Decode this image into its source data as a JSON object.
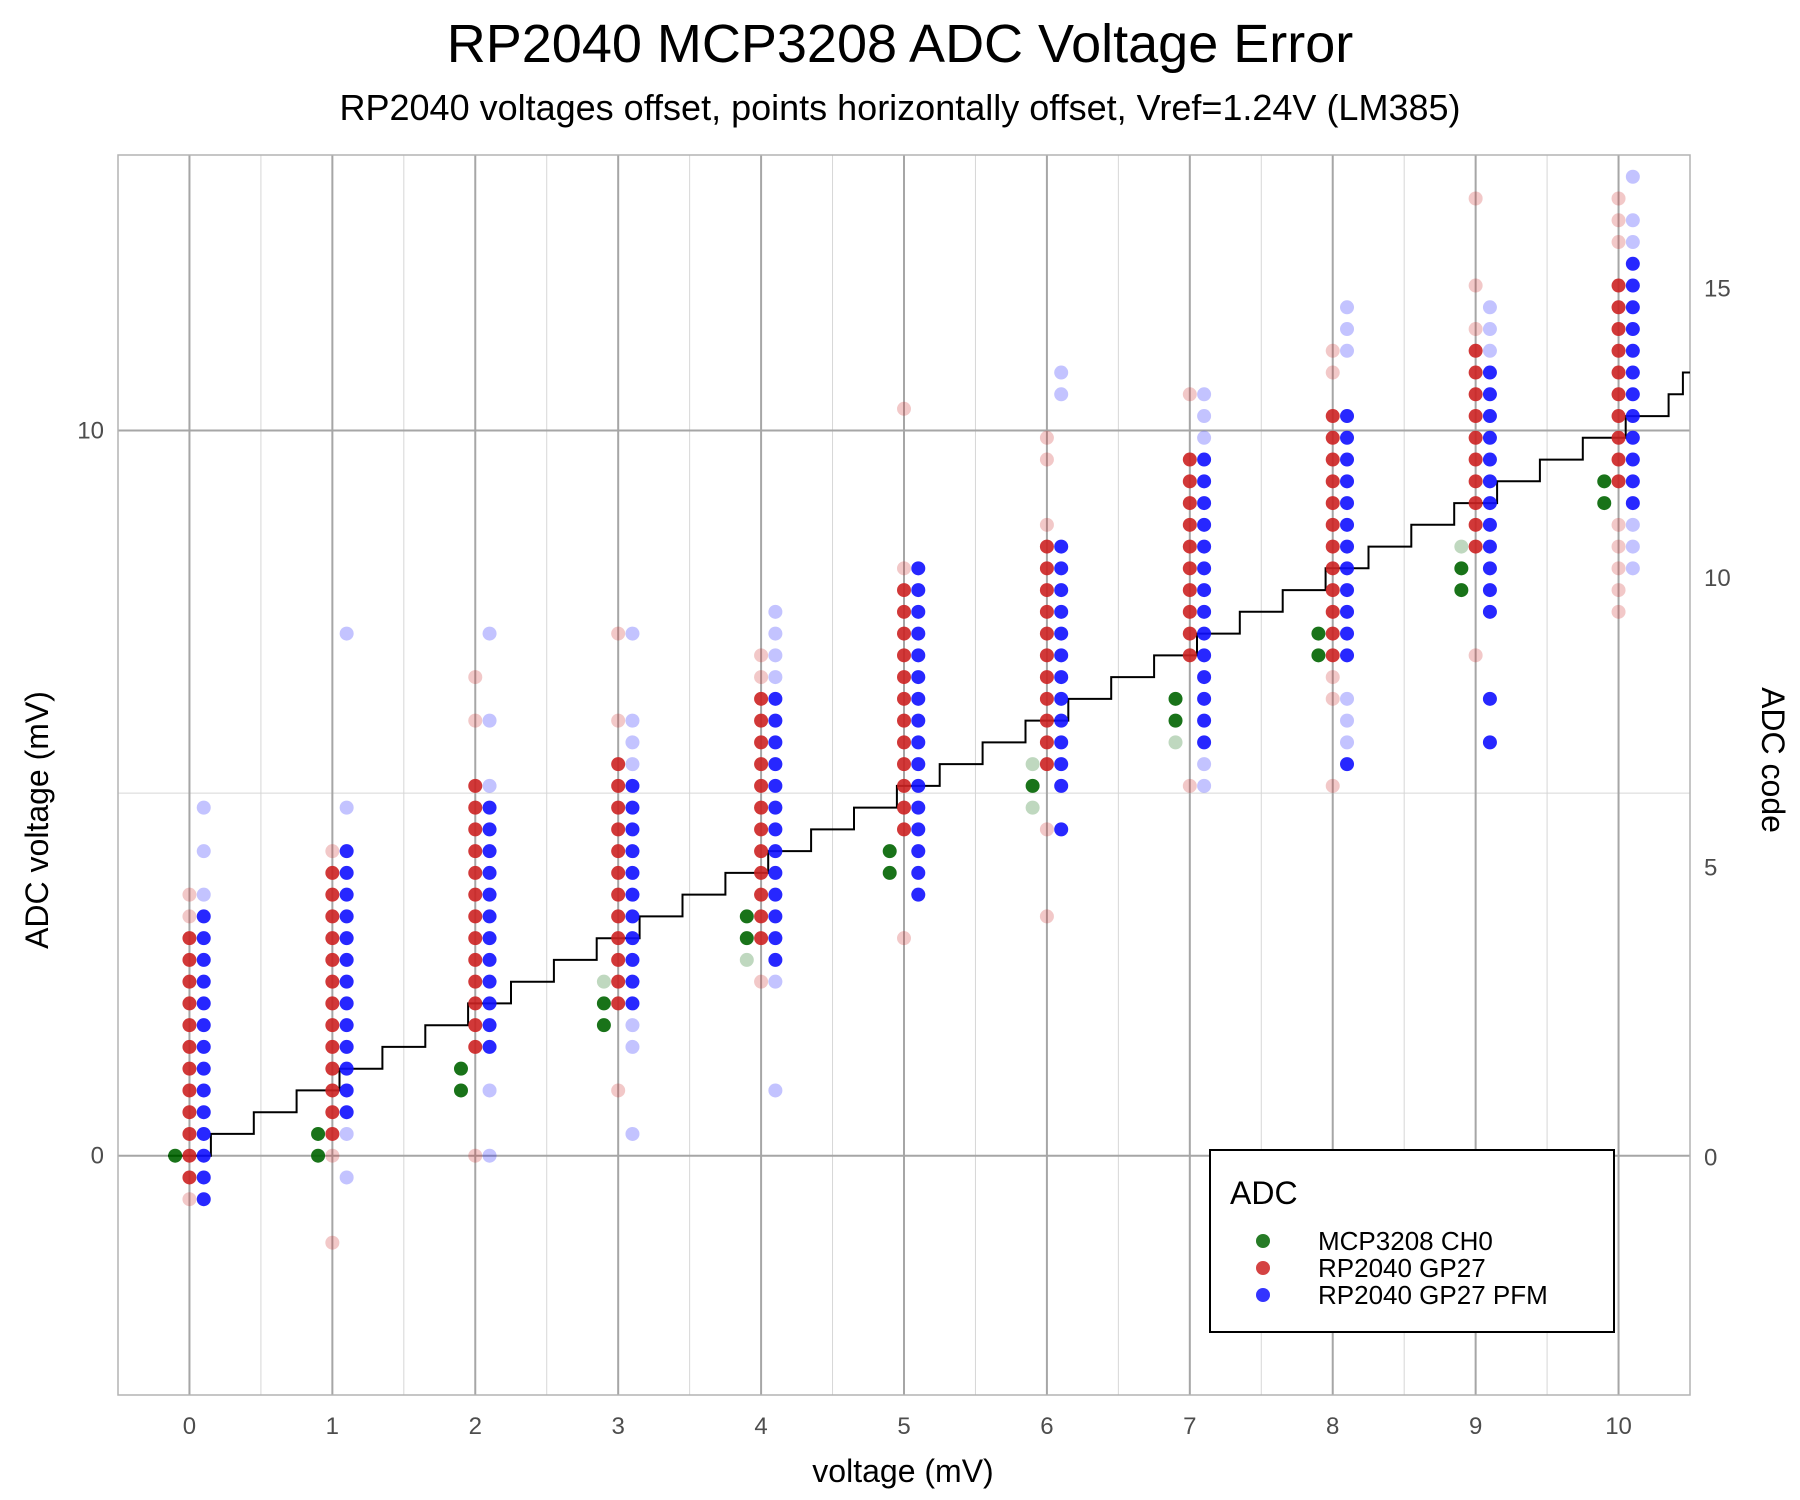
{
  "chart_data": {
    "type": "scatter",
    "title": "RP2040 MCP3208 ADC Voltage Error",
    "subtitle": "RP2040 voltages offset, points horizontally offset, Vref=1.24V (LM385)",
    "xlabel": "voltage (mV)",
    "ylabel": "ADC voltage (mV)",
    "y2label": "ADC code",
    "xlim": [
      -0.5,
      10.5
    ],
    "ylim": [
      -3.3,
      13.8
    ],
    "y2lim": [
      -4.1,
      17.3
    ],
    "x_ticks": [
      "0",
      "1",
      "2",
      "3",
      "4",
      "5",
      "6",
      "7",
      "8",
      "9",
      "10"
    ],
    "y_ticks": [
      "0",
      "10"
    ],
    "y2_ticks": [
      "0",
      "5",
      "10",
      "15"
    ],
    "grid": true,
    "legend": {
      "title": "ADC",
      "position": "bottom-right",
      "entries": [
        "MCP3208 CH0",
        "RP2040 GP27",
        "RP2040 GP27 PFM"
      ]
    },
    "colors": {
      "MCP3208 CH0": "#006400",
      "RP2040 GP27": "#cc2222",
      "RP2040 GP27 PFM": "#1010ff"
    },
    "step_line": {
      "name": "MCP3208 ideal code",
      "x": [
        -0.15,
        0.15,
        0.45,
        0.75,
        1.05,
        1.35,
        1.65,
        1.95,
        2.25,
        2.55,
        2.85,
        3.15,
        3.45,
        3.75,
        4.05,
        4.35,
        4.65,
        4.95,
        5.25,
        5.55,
        5.85,
        6.15,
        6.45,
        6.75,
        7.05,
        7.35,
        7.65,
        7.95,
        8.25,
        8.55,
        8.85,
        9.15,
        9.45,
        9.75,
        10.05,
        10.35,
        10.45
      ],
      "y": [
        0,
        0.3,
        0.6,
        0.9,
        1.2,
        1.5,
        1.8,
        2.1,
        2.4,
        2.7,
        3.0,
        3.3,
        3.6,
        3.9,
        4.2,
        4.5,
        4.8,
        5.1,
        5.4,
        5.7,
        6.0,
        6.3,
        6.6,
        6.9,
        7.2,
        7.5,
        7.8,
        8.1,
        8.4,
        8.7,
        9.0,
        9.3,
        9.6,
        9.9,
        10.2,
        10.5,
        10.8
      ]
    },
    "series": [
      {
        "name": "MCP3208 CH0",
        "x_offset": -0.1,
        "groups": [
          {
            "x": 0,
            "strong": [
              0.0
            ],
            "faint": []
          },
          {
            "x": 1,
            "strong": [
              0.0,
              0.3
            ],
            "faint": []
          },
          {
            "x": 2,
            "strong": [
              0.9,
              1.2
            ],
            "faint": []
          },
          {
            "x": 3,
            "strong": [
              1.8,
              2.1
            ],
            "faint": [
              2.4
            ]
          },
          {
            "x": 4,
            "strong": [
              3.0,
              3.3
            ],
            "faint": [
              2.7
            ]
          },
          {
            "x": 5,
            "strong": [
              3.9,
              4.2
            ],
            "faint": []
          },
          {
            "x": 6,
            "strong": [
              5.1
            ],
            "faint": [
              4.8,
              5.4
            ]
          },
          {
            "x": 7,
            "strong": [
              6.0,
              6.3
            ],
            "faint": [
              5.7
            ]
          },
          {
            "x": 8,
            "strong": [
              6.9,
              7.2
            ],
            "faint": []
          },
          {
            "x": 9,
            "strong": [
              7.8,
              8.1
            ],
            "faint": [
              8.4
            ]
          },
          {
            "x": 10,
            "strong": [
              9.0,
              9.3
            ],
            "faint": []
          }
        ]
      },
      {
        "name": "RP2040 GP27",
        "x_offset": 0.0,
        "groups": [
          {
            "x": 0,
            "strong": [
              -0.3,
              0.0,
              0.3,
              0.6,
              0.9,
              1.2,
              1.5,
              1.8,
              2.1,
              2.4,
              2.7,
              3.0
            ],
            "faint": [
              -0.6,
              3.3,
              3.6
            ]
          },
          {
            "x": 1,
            "strong": [
              0.3,
              0.6,
              0.9,
              1.2,
              1.5,
              1.8,
              2.1,
              2.4,
              2.7,
              3.0,
              3.3,
              3.6,
              3.9
            ],
            "faint": [
              -1.2,
              0.0,
              4.2
            ]
          },
          {
            "x": 2,
            "strong": [
              1.5,
              1.8,
              2.1,
              2.4,
              2.7,
              3.0,
              3.3,
              3.6,
              3.9,
              4.2,
              4.5,
              4.8,
              5.1
            ],
            "faint": [
              0.0,
              6.0,
              6.6
            ]
          },
          {
            "x": 3,
            "strong": [
              2.1,
              2.4,
              2.7,
              3.0,
              3.3,
              3.6,
              3.9,
              4.2,
              4.5,
              4.8,
              5.1,
              5.4
            ],
            "faint": [
              0.9,
              6.0,
              7.2
            ]
          },
          {
            "x": 4,
            "strong": [
              3.0,
              3.3,
              3.6,
              3.9,
              4.2,
              4.5,
              4.8,
              5.1,
              5.4,
              5.7,
              6.0,
              6.3
            ],
            "faint": [
              2.4,
              6.6,
              6.9
            ]
          },
          {
            "x": 5,
            "strong": [
              4.5,
              4.8,
              5.1,
              5.4,
              5.7,
              6.0,
              6.3,
              6.6,
              6.9,
              7.2,
              7.5,
              7.8
            ],
            "faint": [
              3.0,
              8.1,
              10.3
            ]
          },
          {
            "x": 6,
            "strong": [
              5.4,
              5.7,
              6.0,
              6.3,
              6.6,
              6.9,
              7.2,
              7.5,
              7.8,
              8.1,
              8.4
            ],
            "faint": [
              3.3,
              4.5,
              8.7,
              9.6,
              9.9
            ]
          },
          {
            "x": 7,
            "strong": [
              6.9,
              7.2,
              7.5,
              7.8,
              8.1,
              8.4,
              8.7,
              9.0,
              9.3,
              9.6
            ],
            "faint": [
              5.1,
              10.5
            ]
          },
          {
            "x": 8,
            "strong": [
              6.9,
              7.2,
              7.5,
              7.8,
              8.1,
              8.4,
              8.7,
              9.0,
              9.3,
              9.6,
              9.9,
              10.2
            ],
            "faint": [
              5.1,
              6.3,
              6.6,
              10.8,
              11.1
            ]
          },
          {
            "x": 9,
            "strong": [
              8.4,
              8.7,
              9.0,
              9.3,
              9.6,
              9.9,
              10.2,
              10.5,
              10.8,
              11.1
            ],
            "faint": [
              6.9,
              11.4,
              12.0,
              13.2
            ]
          },
          {
            "x": 10,
            "strong": [
              9.3,
              9.6,
              9.9,
              10.2,
              10.5,
              10.8,
              11.1,
              11.4,
              11.7,
              12.0
            ],
            "faint": [
              7.5,
              7.8,
              8.1,
              8.4,
              8.7,
              12.6,
              12.9,
              13.2
            ]
          }
        ]
      },
      {
        "name": "RP2040 GP27 PFM",
        "x_offset": 0.1,
        "groups": [
          {
            "x": 0,
            "strong": [
              -0.6,
              -0.3,
              0.0,
              0.3,
              0.6,
              0.9,
              1.2,
              1.5,
              1.8,
              2.1,
              2.4,
              2.7,
              3.0,
              3.3
            ],
            "faint": [
              3.6,
              4.2,
              4.8
            ]
          },
          {
            "x": 1,
            "strong": [
              0.6,
              0.9,
              1.2,
              1.5,
              1.8,
              2.1,
              2.4,
              2.7,
              3.0,
              3.3,
              3.6,
              3.9,
              4.2
            ],
            "faint": [
              -0.3,
              0.3,
              4.8,
              7.2
            ]
          },
          {
            "x": 2,
            "strong": [
              1.5,
              1.8,
              2.1,
              2.4,
              2.7,
              3.0,
              3.3,
              3.6,
              3.9,
              4.2,
              4.5,
              4.8
            ],
            "faint": [
              0.0,
              0.9,
              5.1,
              6.0,
              7.2
            ]
          },
          {
            "x": 3,
            "strong": [
              2.1,
              2.4,
              2.7,
              3.0,
              3.3,
              3.6,
              3.9,
              4.2,
              4.5,
              4.8,
              5.1
            ],
            "faint": [
              0.3,
              1.5,
              1.8,
              5.4,
              5.7,
              6.0,
              7.2
            ]
          },
          {
            "x": 4,
            "strong": [
              2.7,
              3.0,
              3.3,
              3.6,
              3.9,
              4.2,
              4.5,
              4.8,
              5.1,
              5.4,
              5.7,
              6.0,
              6.3
            ],
            "faint": [
              0.9,
              2.4,
              6.6,
              6.9,
              7.2,
              7.5
            ]
          },
          {
            "x": 5,
            "strong": [
              3.6,
              3.9,
              4.2,
              4.5,
              4.8,
              5.1,
              5.4,
              5.7,
              6.0,
              6.3,
              6.6,
              6.9,
              7.2,
              7.5,
              7.8,
              8.1
            ],
            "faint": []
          },
          {
            "x": 6,
            "strong": [
              4.5,
              5.1,
              5.4,
              5.7,
              6.0,
              6.3,
              6.6,
              6.9,
              7.2,
              7.5,
              7.8,
              8.1,
              8.4
            ],
            "faint": [
              10.5,
              10.8
            ]
          },
          {
            "x": 7,
            "strong": [
              5.7,
              6.0,
              6.3,
              6.6,
              6.9,
              7.2,
              7.5,
              7.8,
              8.1,
              8.4,
              8.7,
              9.0,
              9.3,
              9.6
            ],
            "faint": [
              5.1,
              5.4,
              9.9,
              10.2,
              10.5
            ]
          },
          {
            "x": 8,
            "strong": [
              5.4,
              6.9,
              7.2,
              7.5,
              7.8,
              8.1,
              8.4,
              8.7,
              9.0,
              9.3,
              9.6,
              9.9,
              10.2
            ],
            "faint": [
              5.7,
              6.0,
              6.3,
              11.1,
              11.4,
              11.7
            ]
          },
          {
            "x": 9,
            "strong": [
              5.7,
              6.3,
              7.5,
              7.8,
              8.1,
              8.4,
              8.7,
              9.0,
              9.3,
              9.6,
              9.9,
              10.2,
              10.5,
              10.8
            ],
            "faint": [
              11.1,
              11.4,
              11.7
            ]
          },
          {
            "x": 10,
            "strong": [
              9.0,
              9.3,
              9.6,
              9.9,
              10.2,
              10.5,
              10.8,
              11.1,
              11.4,
              11.7,
              12.0,
              12.3
            ],
            "faint": [
              8.1,
              8.4,
              8.7,
              12.6,
              12.9,
              13.5
            ]
          }
        ]
      }
    ]
  }
}
